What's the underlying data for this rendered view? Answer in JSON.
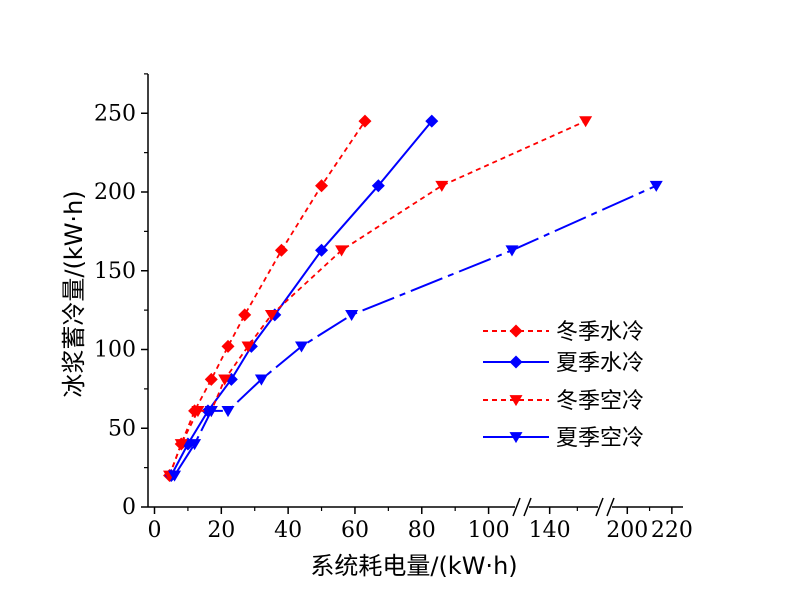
{
  "chart_data": {
    "type": "line",
    "xlabel": "系统耗电量/(kW·h)",
    "ylabel": "冰浆蓄冷量/(kW·h)",
    "ylim": [
      0,
      275
    ],
    "y_ticks": [
      "0",
      "50",
      "100",
      "150",
      "200",
      "250"
    ],
    "x_axis_segments": [
      {
        "range": [
          0,
          110
        ],
        "ticks": [
          "0",
          "20",
          "40",
          "60",
          "80",
          "100"
        ]
      },
      {
        "range": [
          130,
          160
        ],
        "ticks": [
          "140"
        ]
      },
      {
        "range": [
          190,
          225
        ],
        "ticks": [
          "200",
          "220"
        ]
      }
    ],
    "x_axis_break_marks": [
      "//",
      "//"
    ],
    "legend": "right-middle",
    "series": [
      {
        "name": "冬季水冷",
        "color": "#ff0000",
        "line": "dashed",
        "marker": "diamond",
        "x": [
          4.5,
          8,
          12,
          17,
          22,
          27,
          38,
          50,
          63
        ],
        "y": [
          20,
          40,
          61,
          81,
          102,
          122,
          163,
          204,
          245
        ]
      },
      {
        "name": "夏季水冷",
        "color": "#0000ff",
        "line": "solid",
        "marker": "diamond",
        "x": [
          5,
          10,
          16,
          23,
          29,
          36,
          50,
          67,
          83
        ],
        "y": [
          20,
          40,
          61,
          81,
          102,
          122,
          163,
          204,
          245
        ]
      },
      {
        "name": "冬季空冷",
        "color": "#ff0000",
        "line": "dashed",
        "marker": "triangle-down",
        "x": [
          4.5,
          8,
          13,
          17,
          21,
          28,
          35,
          56,
          86,
          153
        ],
        "y": [
          20,
          40,
          61,
          61,
          81,
          102,
          122,
          163,
          204,
          245
        ]
      },
      {
        "name": "夏季空冷",
        "color": "#0000ff",
        "line": "dash-dot",
        "marker": "triangle-down",
        "x": [
          6,
          12,
          17,
          22,
          32,
          44,
          59,
          107,
          213
        ],
        "y": [
          20,
          40,
          61,
          61,
          81,
          102,
          122,
          163,
          204
        ]
      }
    ]
  }
}
